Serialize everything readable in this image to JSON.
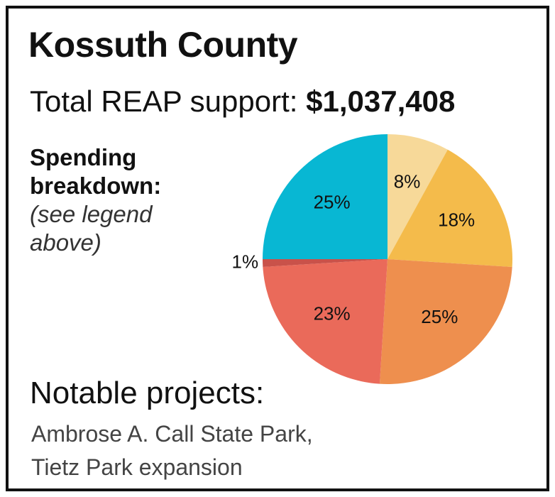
{
  "header": {
    "title": "Kossuth County",
    "subtitle_prefix": "Total REAP support: ",
    "subtitle_amount": "$1,037,408"
  },
  "sidebar": {
    "heading_line1": "Spending",
    "heading_line2": "breakdown:",
    "note_line1": "(see legend",
    "note_line2": "above)"
  },
  "projects": {
    "heading": "Notable projects:",
    "line1": "Ambrose A. Call State Park,",
    "line2": "Tietz Park expansion"
  },
  "chart_data": {
    "type": "pie",
    "title": "",
    "slices": [
      {
        "value": 8,
        "label": "8%",
        "color": "#f7d999"
      },
      {
        "value": 18,
        "label": "18%",
        "color": "#f4bb4b"
      },
      {
        "value": 25,
        "label": "25%",
        "color": "#ee8f4e"
      },
      {
        "value": 23,
        "label": "23%",
        "color": "#ea6a5a"
      },
      {
        "value": 1,
        "label": "1%",
        "color": "#c9524a"
      },
      {
        "value": 25,
        "label": "25%",
        "color": "#08b7d3"
      }
    ]
  }
}
